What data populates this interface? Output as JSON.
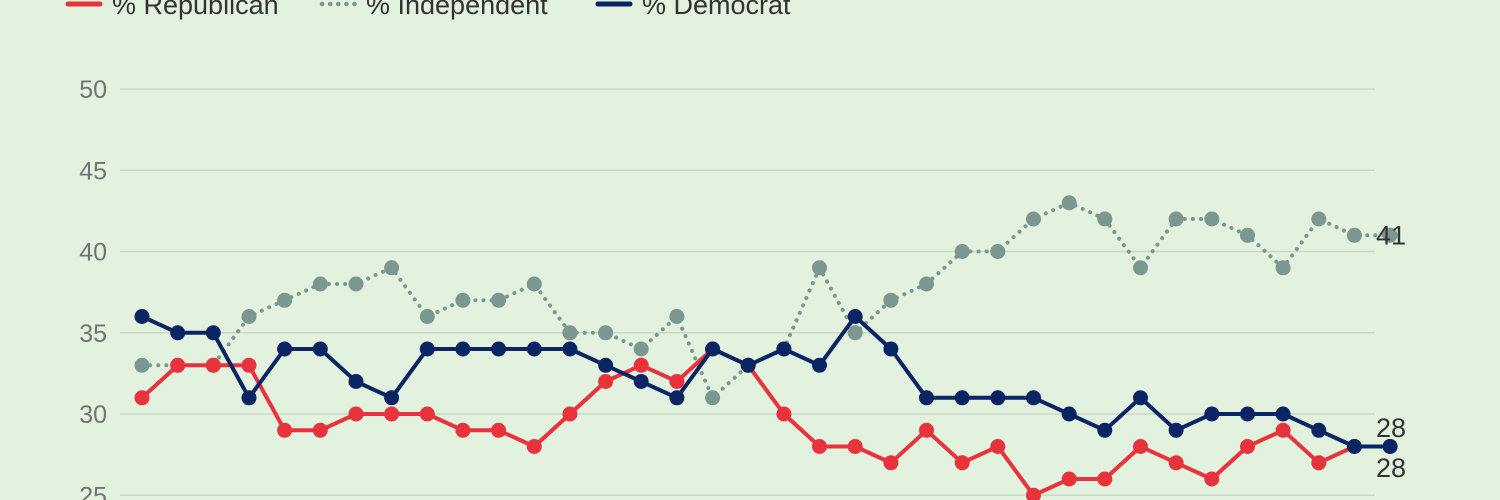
{
  "chart_data": {
    "type": "line",
    "title": "",
    "xlabel": "",
    "ylabel": "",
    "ylim": [
      25,
      50
    ],
    "y_ticks": [
      25,
      30,
      35,
      40,
      45,
      50
    ],
    "grid": true,
    "legend_placement": "top-left",
    "x": [
      1,
      2,
      3,
      4,
      5,
      6,
      7,
      8,
      9,
      10,
      11,
      12,
      13,
      14,
      15,
      16,
      17,
      18,
      19,
      20,
      21,
      22,
      23,
      24,
      25,
      26,
      27,
      28,
      29,
      30,
      31,
      32,
      33,
      34,
      35,
      36
    ],
    "series": [
      {
        "key": "republican",
        "name": "% Republican",
        "color": "#e8323c",
        "line_style": "solid",
        "values": [
          31,
          33,
          33,
          33,
          29,
          29,
          30,
          30,
          30,
          29,
          29,
          28,
          30,
          32,
          33,
          32,
          34,
          33,
          30,
          28,
          28,
          27,
          29,
          27,
          28,
          25,
          26,
          26,
          28,
          27,
          26,
          28,
          29,
          27,
          28,
          28
        ],
        "end_label": "28"
      },
      {
        "key": "independent",
        "name": "% Independent",
        "color": "#7c9690",
        "line_style": "dotted",
        "values": [
          33,
          33,
          33,
          36,
          37,
          38,
          38,
          39,
          36,
          37,
          37,
          38,
          35,
          35,
          34,
          36,
          31,
          33,
          34,
          39,
          35,
          37,
          38,
          40,
          40,
          42,
          43,
          42,
          39,
          42,
          42,
          41,
          39,
          42,
          41,
          41
        ],
        "end_label": "41"
      },
      {
        "key": "democrat",
        "name": "% Democrat",
        "color": "#0b2463",
        "line_style": "solid",
        "values": [
          36,
          35,
          35,
          31,
          34,
          34,
          32,
          31,
          34,
          34,
          34,
          34,
          34,
          33,
          32,
          31,
          34,
          33,
          34,
          33,
          36,
          34,
          31,
          31,
          31,
          31,
          30,
          29,
          31,
          29,
          30,
          30,
          30,
          29,
          28,
          28
        ],
        "end_label": "28"
      }
    ]
  }
}
